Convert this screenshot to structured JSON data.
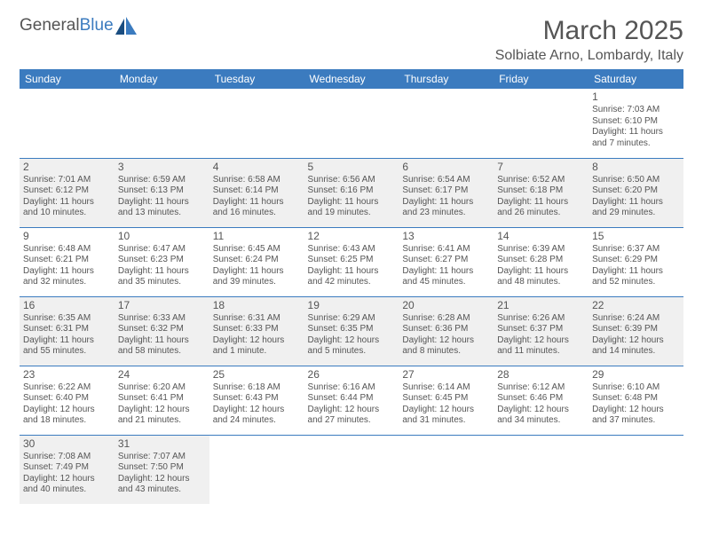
{
  "logo": {
    "text1": "General",
    "text2": "Blue"
  },
  "title": "March 2025",
  "location": "Solbiate Arno, Lombardy, Italy",
  "colors": {
    "header_bg": "#3b7bbf",
    "header_text": "#ffffff",
    "border": "#3b7bbf",
    "text": "#555555",
    "shaded": "#f0f0f0",
    "background": "#ffffff"
  },
  "day_headers": [
    "Sunday",
    "Monday",
    "Tuesday",
    "Wednesday",
    "Thursday",
    "Friday",
    "Saturday"
  ],
  "weeks": [
    [
      {
        "blank": true
      },
      {
        "blank": true
      },
      {
        "blank": true
      },
      {
        "blank": true
      },
      {
        "blank": true
      },
      {
        "blank": true
      },
      {
        "n": "1",
        "sr": "Sunrise: 7:03 AM",
        "ss": "Sunset: 6:10 PM",
        "dl": "Daylight: 11 hours and 7 minutes."
      }
    ],
    [
      {
        "n": "2",
        "sr": "Sunrise: 7:01 AM",
        "ss": "Sunset: 6:12 PM",
        "dl": "Daylight: 11 hours and 10 minutes.",
        "shaded": true
      },
      {
        "n": "3",
        "sr": "Sunrise: 6:59 AM",
        "ss": "Sunset: 6:13 PM",
        "dl": "Daylight: 11 hours and 13 minutes.",
        "shaded": true
      },
      {
        "n": "4",
        "sr": "Sunrise: 6:58 AM",
        "ss": "Sunset: 6:14 PM",
        "dl": "Daylight: 11 hours and 16 minutes.",
        "shaded": true
      },
      {
        "n": "5",
        "sr": "Sunrise: 6:56 AM",
        "ss": "Sunset: 6:16 PM",
        "dl": "Daylight: 11 hours and 19 minutes.",
        "shaded": true
      },
      {
        "n": "6",
        "sr": "Sunrise: 6:54 AM",
        "ss": "Sunset: 6:17 PM",
        "dl": "Daylight: 11 hours and 23 minutes.",
        "shaded": true
      },
      {
        "n": "7",
        "sr": "Sunrise: 6:52 AM",
        "ss": "Sunset: 6:18 PM",
        "dl": "Daylight: 11 hours and 26 minutes.",
        "shaded": true
      },
      {
        "n": "8",
        "sr": "Sunrise: 6:50 AM",
        "ss": "Sunset: 6:20 PM",
        "dl": "Daylight: 11 hours and 29 minutes.",
        "shaded": true
      }
    ],
    [
      {
        "n": "9",
        "sr": "Sunrise: 6:48 AM",
        "ss": "Sunset: 6:21 PM",
        "dl": "Daylight: 11 hours and 32 minutes."
      },
      {
        "n": "10",
        "sr": "Sunrise: 6:47 AM",
        "ss": "Sunset: 6:23 PM",
        "dl": "Daylight: 11 hours and 35 minutes."
      },
      {
        "n": "11",
        "sr": "Sunrise: 6:45 AM",
        "ss": "Sunset: 6:24 PM",
        "dl": "Daylight: 11 hours and 39 minutes."
      },
      {
        "n": "12",
        "sr": "Sunrise: 6:43 AM",
        "ss": "Sunset: 6:25 PM",
        "dl": "Daylight: 11 hours and 42 minutes."
      },
      {
        "n": "13",
        "sr": "Sunrise: 6:41 AM",
        "ss": "Sunset: 6:27 PM",
        "dl": "Daylight: 11 hours and 45 minutes."
      },
      {
        "n": "14",
        "sr": "Sunrise: 6:39 AM",
        "ss": "Sunset: 6:28 PM",
        "dl": "Daylight: 11 hours and 48 minutes."
      },
      {
        "n": "15",
        "sr": "Sunrise: 6:37 AM",
        "ss": "Sunset: 6:29 PM",
        "dl": "Daylight: 11 hours and 52 minutes."
      }
    ],
    [
      {
        "n": "16",
        "sr": "Sunrise: 6:35 AM",
        "ss": "Sunset: 6:31 PM",
        "dl": "Daylight: 11 hours and 55 minutes.",
        "shaded": true
      },
      {
        "n": "17",
        "sr": "Sunrise: 6:33 AM",
        "ss": "Sunset: 6:32 PM",
        "dl": "Daylight: 11 hours and 58 minutes.",
        "shaded": true
      },
      {
        "n": "18",
        "sr": "Sunrise: 6:31 AM",
        "ss": "Sunset: 6:33 PM",
        "dl": "Daylight: 12 hours and 1 minute.",
        "shaded": true
      },
      {
        "n": "19",
        "sr": "Sunrise: 6:29 AM",
        "ss": "Sunset: 6:35 PM",
        "dl": "Daylight: 12 hours and 5 minutes.",
        "shaded": true
      },
      {
        "n": "20",
        "sr": "Sunrise: 6:28 AM",
        "ss": "Sunset: 6:36 PM",
        "dl": "Daylight: 12 hours and 8 minutes.",
        "shaded": true
      },
      {
        "n": "21",
        "sr": "Sunrise: 6:26 AM",
        "ss": "Sunset: 6:37 PM",
        "dl": "Daylight: 12 hours and 11 minutes.",
        "shaded": true
      },
      {
        "n": "22",
        "sr": "Sunrise: 6:24 AM",
        "ss": "Sunset: 6:39 PM",
        "dl": "Daylight: 12 hours and 14 minutes.",
        "shaded": true
      }
    ],
    [
      {
        "n": "23",
        "sr": "Sunrise: 6:22 AM",
        "ss": "Sunset: 6:40 PM",
        "dl": "Daylight: 12 hours and 18 minutes."
      },
      {
        "n": "24",
        "sr": "Sunrise: 6:20 AM",
        "ss": "Sunset: 6:41 PM",
        "dl": "Daylight: 12 hours and 21 minutes."
      },
      {
        "n": "25",
        "sr": "Sunrise: 6:18 AM",
        "ss": "Sunset: 6:43 PM",
        "dl": "Daylight: 12 hours and 24 minutes."
      },
      {
        "n": "26",
        "sr": "Sunrise: 6:16 AM",
        "ss": "Sunset: 6:44 PM",
        "dl": "Daylight: 12 hours and 27 minutes."
      },
      {
        "n": "27",
        "sr": "Sunrise: 6:14 AM",
        "ss": "Sunset: 6:45 PM",
        "dl": "Daylight: 12 hours and 31 minutes."
      },
      {
        "n": "28",
        "sr": "Sunrise: 6:12 AM",
        "ss": "Sunset: 6:46 PM",
        "dl": "Daylight: 12 hours and 34 minutes."
      },
      {
        "n": "29",
        "sr": "Sunrise: 6:10 AM",
        "ss": "Sunset: 6:48 PM",
        "dl": "Daylight: 12 hours and 37 minutes."
      }
    ],
    [
      {
        "n": "30",
        "sr": "Sunrise: 7:08 AM",
        "ss": "Sunset: 7:49 PM",
        "dl": "Daylight: 12 hours and 40 minutes.",
        "shaded": true
      },
      {
        "n": "31",
        "sr": "Sunrise: 7:07 AM",
        "ss": "Sunset: 7:50 PM",
        "dl": "Daylight: 12 hours and 43 minutes.",
        "shaded": true
      },
      {
        "blank": true
      },
      {
        "blank": true
      },
      {
        "blank": true
      },
      {
        "blank": true
      },
      {
        "blank": true
      }
    ]
  ]
}
